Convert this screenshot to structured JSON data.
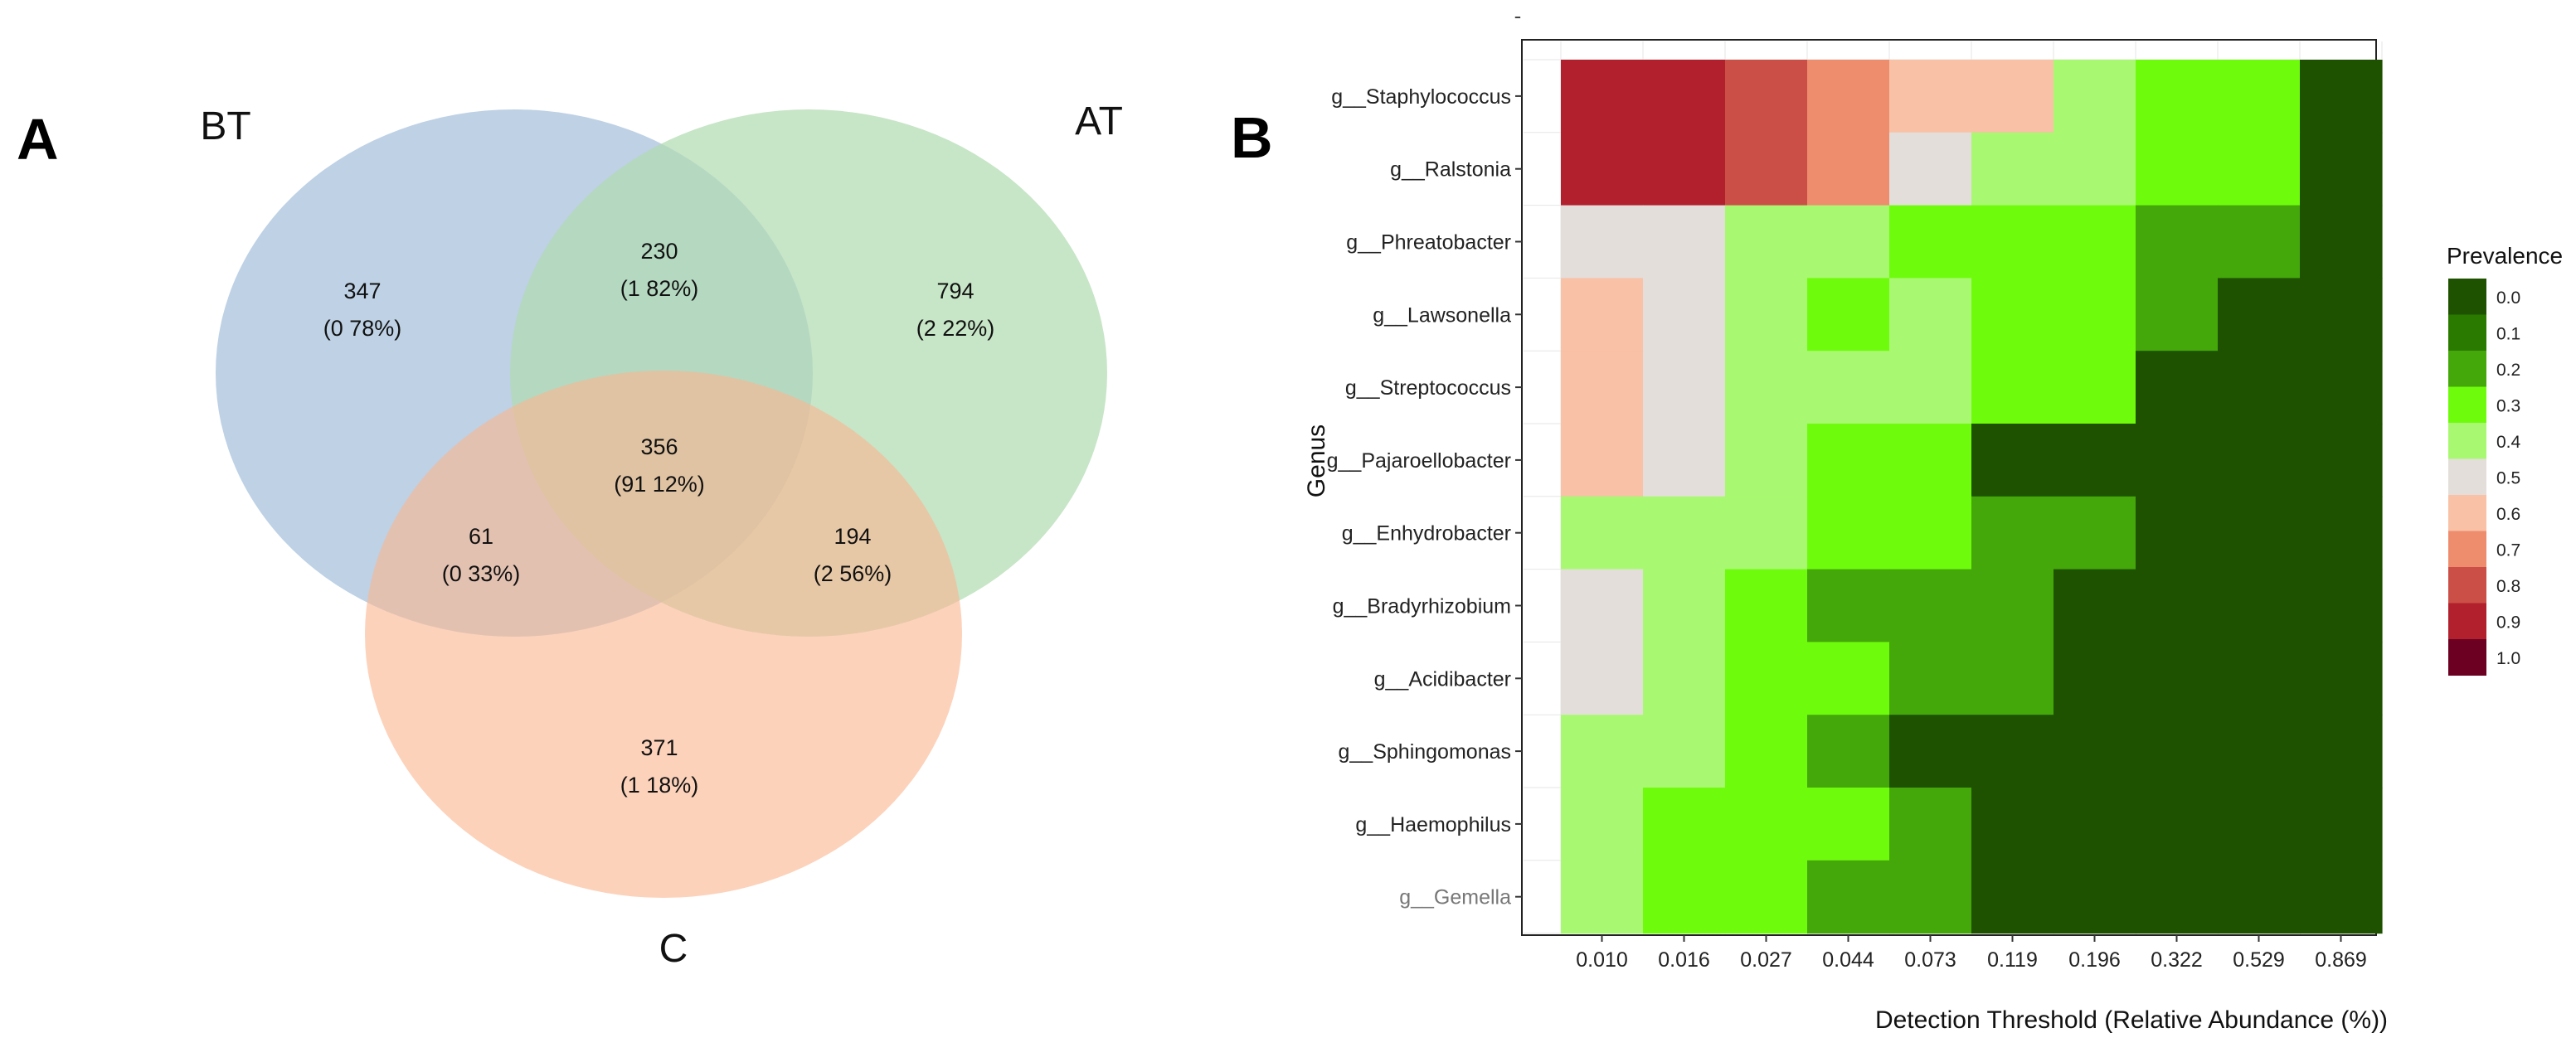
{
  "panel_a": {
    "label": "A",
    "sets": [
      {
        "name": "BT",
        "color": "#a5bfdb"
      },
      {
        "name": "AT",
        "color": "#b1dbb1"
      },
      {
        "name": "C",
        "color": "#fab791"
      }
    ],
    "regions": [
      {
        "id": "bt-only",
        "count": "347",
        "pct": "(0 78%)"
      },
      {
        "id": "bt-at",
        "count": "230",
        "pct": "(1 82%)"
      },
      {
        "id": "at-only",
        "count": "794",
        "pct": "(2 22%)"
      },
      {
        "id": "all",
        "count": "356",
        "pct": "(91 12%)"
      },
      {
        "id": "bt-c",
        "count": "61",
        "pct": "(0 33%)"
      },
      {
        "id": "at-c",
        "count": "194",
        "pct": "(2 56%)"
      },
      {
        "id": "c-only",
        "count": "371",
        "pct": "(1 18%)"
      }
    ]
  },
  "panel_b": {
    "label": "B",
    "dot": "-"
  },
  "chart_data": [
    {
      "type": "venn",
      "sets": [
        "BT",
        "AT",
        "C"
      ],
      "regions": [
        {
          "sets": [
            "BT"
          ],
          "count": 347,
          "percent": 0.78
        },
        {
          "sets": [
            "BT",
            "AT"
          ],
          "count": 230,
          "percent": 1.82
        },
        {
          "sets": [
            "AT"
          ],
          "count": 794,
          "percent": 2.22
        },
        {
          "sets": [
            "BT",
            "AT",
            "C"
          ],
          "count": 356,
          "percent": 91.12
        },
        {
          "sets": [
            "BT",
            "C"
          ],
          "count": 61,
          "percent": 0.33
        },
        {
          "sets": [
            "AT",
            "C"
          ],
          "count": 194,
          "percent": 2.56
        },
        {
          "sets": [
            "C"
          ],
          "count": 371,
          "percent": 1.18
        }
      ]
    },
    {
      "type": "heatmap",
      "title": "",
      "xlabel": "Detection Threshold (Relative Abundance (%))",
      "ylabel": "Genus",
      "x": [
        "0.010",
        "0.016",
        "0.027",
        "0.044",
        "0.073",
        "0.119",
        "0.196",
        "0.322",
        "0.529",
        "0.869"
      ],
      "y": [
        "g__Staphylococcus",
        "g__Ralstonia",
        "g__Phreatobacter",
        "g__Lawsonella",
        "g__Streptococcus",
        "g__Pajaroellobacter",
        "g__Enhydrobacter",
        "g__Bradyrhizobium",
        "g__Acidibacter",
        "g__Sphingomonas",
        "g__Haemophilus",
        "g__Gemella"
      ],
      "values": [
        [
          0.9,
          0.85,
          0.8,
          0.7,
          0.6,
          0.55,
          0.4,
          0.25,
          0.3,
          0.0
        ],
        [
          0.9,
          0.85,
          0.75,
          0.65,
          0.5,
          0.4,
          0.4,
          0.25,
          0.25,
          0.0
        ],
        [
          0.45,
          0.45,
          0.4,
          0.4,
          0.25,
          0.25,
          0.3,
          0.15,
          0.15,
          0.0
        ],
        [
          0.55,
          0.5,
          0.4,
          0.25,
          0.4,
          0.3,
          0.3,
          0.15,
          0.0,
          0.0
        ],
        [
          0.55,
          0.45,
          0.4,
          0.4,
          0.4,
          0.25,
          0.3,
          0.0,
          0.0,
          0.0
        ],
        [
          0.6,
          0.5,
          0.4,
          0.25,
          0.3,
          0.0,
          0.0,
          0.0,
          0.0,
          0.0
        ],
        [
          0.4,
          0.4,
          0.4,
          0.25,
          0.25,
          0.2,
          0.2,
          0.0,
          0.0,
          0.0
        ],
        [
          0.5,
          0.4,
          0.3,
          0.2,
          0.2,
          0.2,
          0.0,
          0.0,
          0.0,
          0.0
        ],
        [
          0.45,
          0.4,
          0.25,
          0.3,
          0.2,
          0.2,
          0.0,
          0.0,
          0.0,
          0.0
        ],
        [
          0.4,
          0.4,
          0.3,
          0.2,
          0.0,
          0.0,
          0.0,
          0.0,
          0.0,
          0.0
        ],
        [
          0.4,
          0.25,
          0.25,
          0.25,
          0.2,
          0.0,
          0.0,
          0.0,
          0.0,
          0.0
        ],
        [
          0.4,
          0.25,
          0.3,
          0.2,
          0.2,
          0.0,
          0.0,
          0.0,
          0.0,
          0.0
        ]
      ],
      "legend": {
        "title": "Prevalence",
        "placement": "right",
        "levels": [
          {
            "label": "0.0",
            "color": "#1e5200"
          },
          {
            "label": "0.1",
            "color": "#2b7a00"
          },
          {
            "label": "0.2",
            "color": "#44a80a"
          },
          {
            "label": "0.3",
            "color": "#6efc0c"
          },
          {
            "label": "0.4",
            "color": "#a8f871"
          },
          {
            "label": "0.5",
            "color": "#e4dedb"
          },
          {
            "label": "0.6",
            "color": "#f9c1a6"
          },
          {
            "label": "0.7",
            "color": "#ee8c6e"
          },
          {
            "label": "0.8",
            "color": "#cc4f47"
          },
          {
            "label": "0.9",
            "color": "#b1202c"
          },
          {
            "label": "1.0",
            "color": "#6b0022"
          }
        ]
      },
      "grid": true
    }
  ]
}
